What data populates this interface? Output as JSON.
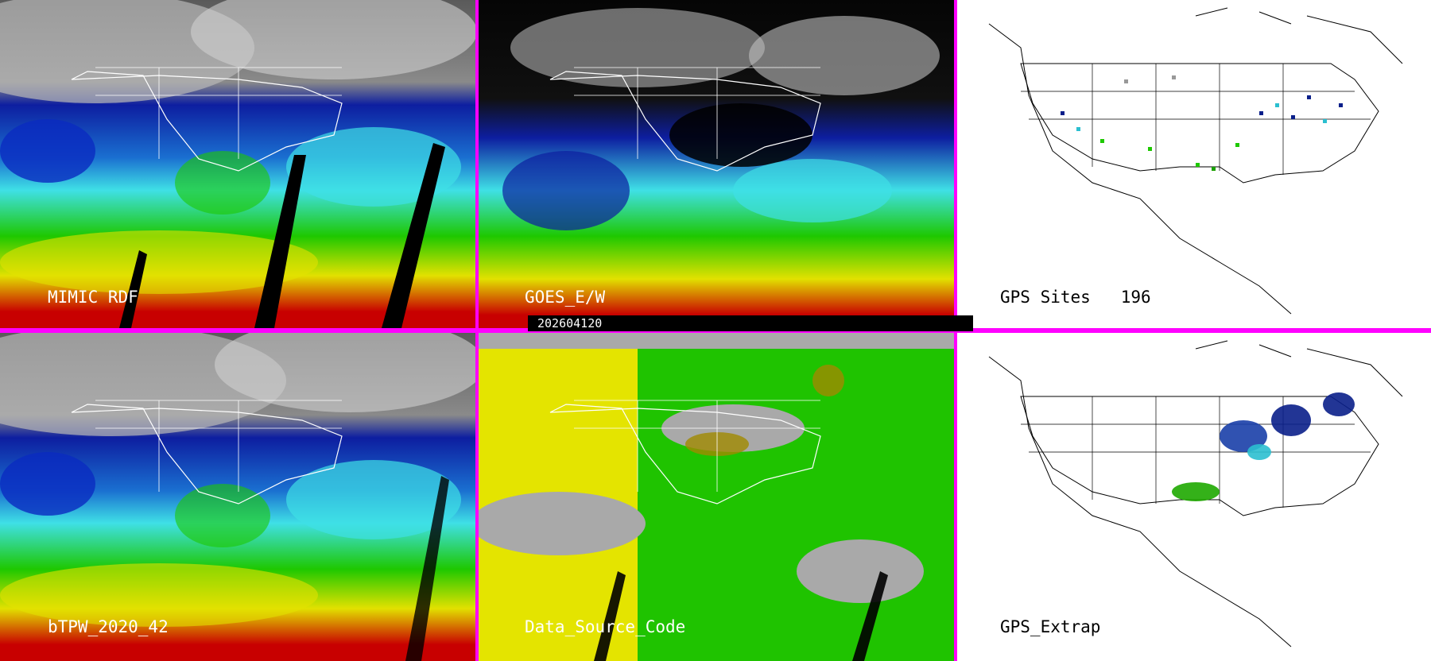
{
  "panels": [
    {
      "id": "p1",
      "label": "MIMIC RDF",
      "type": "satellite"
    },
    {
      "id": "p2",
      "label": "GOES_E/W",
      "type": "satellite"
    },
    {
      "id": "p3",
      "label": "GPS Sites   196",
      "type": "gps"
    },
    {
      "id": "p4",
      "label": "bTPW_2020_42",
      "type": "satellite"
    },
    {
      "id": "p5",
      "label": "Data_Source_Code",
      "type": "source"
    },
    {
      "id": "p6",
      "label": "GPS_Extrap",
      "type": "gps"
    }
  ],
  "timestamp": "202604120",
  "colors": {
    "divider": "#ff00ff",
    "ocean_blue": "#0a1fa8",
    "cyan": "#3fe0e6",
    "green": "#1ec800",
    "yellow": "#e2e100",
    "red": "#c80000",
    "source_gray": "#a9a9a9",
    "source_yellow": "#e4e400",
    "source_green": "#1fc300"
  }
}
